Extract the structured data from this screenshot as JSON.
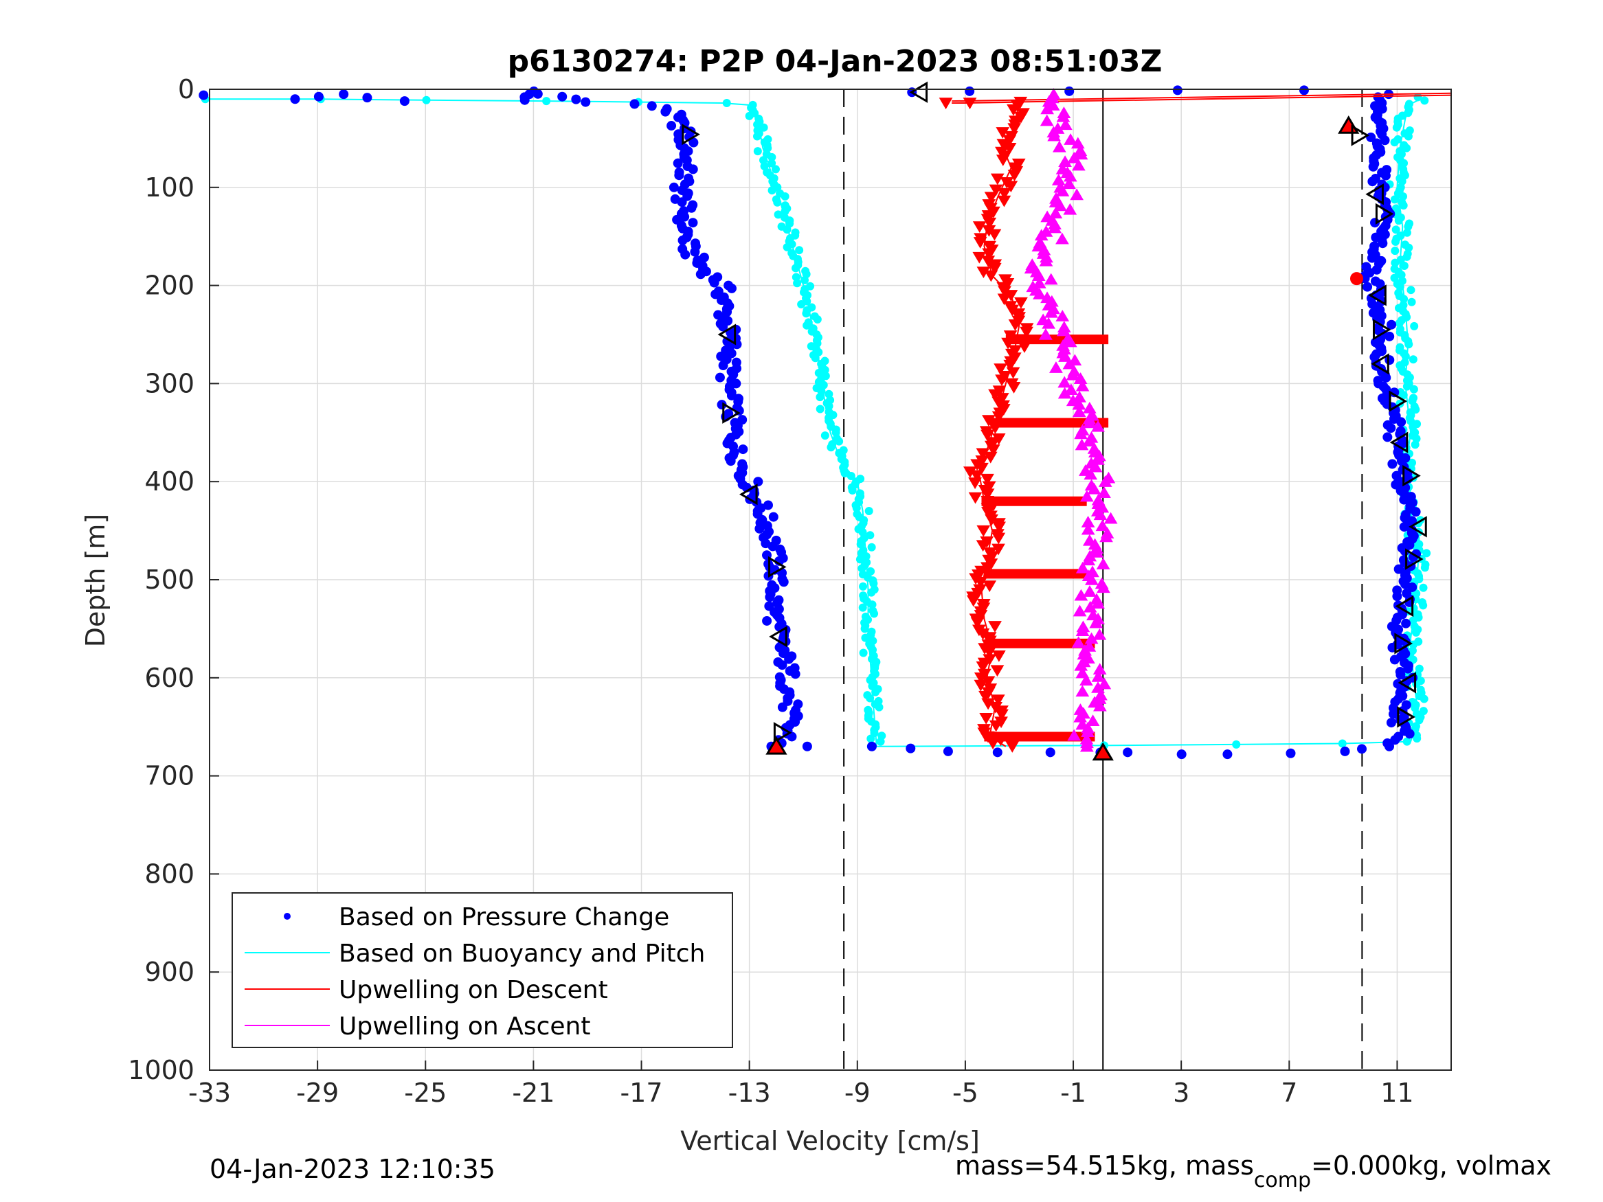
{
  "chart_data": {
    "type": "scatter",
    "title": "p6130274: P2P 04-Jan-2023 08:51:03Z",
    "xlabel": "Vertical Velocity [cm/s]",
    "ylabel": "Depth [m]",
    "xlim": [
      -33,
      13
    ],
    "ylim": [
      0,
      1000
    ],
    "y_reversed": true,
    "grid": true,
    "x_ticks": [
      "-33",
      "-29",
      "-25",
      "-21",
      "-17",
      "-13",
      "-9",
      "-5",
      "-1",
      "3",
      "7",
      "11"
    ],
    "y_ticks": [
      "0",
      "100",
      "200",
      "300",
      "400",
      "500",
      "600",
      "700",
      "800",
      "900",
      "1000"
    ],
    "vertical_lines": [
      {
        "x": -9.5,
        "style": "dashed"
      },
      {
        "x": 0.1,
        "style": "solid"
      },
      {
        "x": 9.7,
        "style": "dashed"
      }
    ],
    "legend_position": "bottom-left",
    "series": [
      {
        "name": "Based on Pressure Change",
        "color": "#0000ff",
        "marker": "dot",
        "descent": [
          [
            -33,
            6
          ],
          [
            -30,
            10
          ],
          [
            -28,
            5
          ],
          [
            -26,
            12
          ],
          [
            -21.5,
            11
          ],
          [
            -21,
            2
          ],
          [
            -19,
            13
          ],
          [
            -17.5,
            15
          ],
          [
            -16.5,
            17
          ],
          [
            -16,
            20
          ],
          [
            -15.5,
            40
          ],
          [
            -15.3,
            60
          ],
          [
            -15.5,
            100
          ],
          [
            -15.4,
            130
          ],
          [
            -15.3,
            160
          ],
          [
            -14.8,
            180
          ],
          [
            -14,
            200
          ],
          [
            -13.9,
            230
          ],
          [
            -13.7,
            260
          ],
          [
            -13.8,
            300
          ],
          [
            -13.6,
            340
          ],
          [
            -13.5,
            370
          ],
          [
            -13,
            400
          ],
          [
            -12.5,
            430
          ],
          [
            -12.2,
            460
          ],
          [
            -12,
            490
          ],
          [
            -12.1,
            530
          ],
          [
            -11.9,
            560
          ],
          [
            -11.6,
            590
          ],
          [
            -11.5,
            630
          ],
          [
            -11.6,
            660
          ],
          [
            -12,
            670
          ]
        ],
        "ascent": [
          [
            -12,
            670
          ],
          [
            -11,
            670
          ],
          [
            -8.5,
            670
          ],
          [
            -7,
            672
          ],
          [
            -5.5,
            675
          ],
          [
            -4,
            676
          ],
          [
            -2,
            676
          ],
          [
            0,
            676
          ],
          [
            1,
            676
          ],
          [
            3,
            678
          ],
          [
            5,
            678
          ],
          [
            7,
            677
          ],
          [
            9,
            675
          ],
          [
            10.5,
            670
          ],
          [
            11.2,
            660
          ],
          [
            11,
            640
          ],
          [
            11.3,
            600
          ],
          [
            11,
            560
          ],
          [
            11.2,
            520
          ],
          [
            11.4,
            480
          ],
          [
            11.5,
            440
          ],
          [
            11.2,
            400
          ],
          [
            11,
            370
          ],
          [
            10.8,
            330
          ],
          [
            10.6,
            300
          ],
          [
            10.4,
            270
          ],
          [
            10.5,
            240
          ],
          [
            10.2,
            210
          ],
          [
            10,
            190
          ],
          [
            10.3,
            160
          ],
          [
            10.5,
            130
          ],
          [
            10.3,
            100
          ],
          [
            10.4,
            70
          ],
          [
            10.2,
            40
          ],
          [
            10.3,
            20
          ],
          [
            10.5,
            5
          ],
          [
            -7,
            3
          ],
          [
            -5,
            2
          ],
          [
            -1,
            2
          ],
          [
            3,
            1
          ],
          [
            7.5,
            1
          ]
        ]
      },
      {
        "name": "Based on Buoyancy and Pitch",
        "color": "#00ffff",
        "marker": "line+dot",
        "descent": [
          [
            -33,
            10
          ],
          [
            -29,
            10
          ],
          [
            -25,
            11
          ],
          [
            -20.5,
            12
          ],
          [
            -17,
            13
          ],
          [
            -14,
            14
          ],
          [
            -13,
            16
          ],
          [
            -12.7,
            30
          ],
          [
            -12.5,
            60
          ],
          [
            -12,
            100
          ],
          [
            -11.6,
            140
          ],
          [
            -11.3,
            170
          ],
          [
            -10.9,
            210
          ],
          [
            -10.6,
            250
          ],
          [
            -10.4,
            280
          ],
          [
            -10.2,
            320
          ],
          [
            -10,
            350
          ],
          [
            -9.6,
            380
          ],
          [
            -9,
            400
          ],
          [
            -8.8,
            430
          ],
          [
            -8.7,
            470
          ],
          [
            -8.6,
            510
          ],
          [
            -8.6,
            550
          ],
          [
            -8.5,
            590
          ],
          [
            -8.4,
            630
          ],
          [
            -8.3,
            665
          ]
        ],
        "ascent": [
          [
            -8.3,
            670
          ],
          [
            0,
            669
          ],
          [
            5,
            668
          ],
          [
            9,
            667
          ],
          [
            11.5,
            665
          ],
          [
            11.8,
            640
          ],
          [
            11.6,
            600
          ],
          [
            11.5,
            560
          ],
          [
            11.7,
            520
          ],
          [
            11.8,
            470
          ],
          [
            11.5,
            430
          ],
          [
            11.3,
            390
          ],
          [
            11.5,
            350
          ],
          [
            11.3,
            300
          ],
          [
            11.4,
            260
          ],
          [
            11.3,
            220
          ],
          [
            11.1,
            180
          ],
          [
            11.2,
            140
          ],
          [
            11,
            100
          ],
          [
            11.1,
            60
          ],
          [
            11.3,
            30
          ],
          [
            11.5,
            15
          ],
          [
            12,
            8
          ]
        ]
      },
      {
        "name": "Upwelling on Descent",
        "color": "#ff0000",
        "marker": "triangle-down",
        "points": [
          [
            -5.5,
            14
          ],
          [
            -5,
            14
          ],
          [
            -3,
            13
          ],
          [
            -3.2,
            40
          ],
          [
            -3.6,
            60
          ],
          [
            -3.3,
            80
          ],
          [
            -3.8,
            110
          ],
          [
            -4.2,
            140
          ],
          [
            -4.3,
            160
          ],
          [
            -4,
            190
          ],
          [
            -3.3,
            210
          ],
          [
            -3,
            240
          ],
          [
            -3.2,
            270
          ],
          [
            -3.5,
            300
          ],
          [
            -3.8,
            330
          ],
          [
            -4.1,
            360
          ],
          [
            -4.5,
            390
          ],
          [
            -4.3,
            420
          ],
          [
            -4,
            450
          ],
          [
            -4.2,
            480
          ],
          [
            -4.4,
            510
          ],
          [
            -4.3,
            540
          ],
          [
            -4,
            570
          ],
          [
            -4.2,
            600
          ],
          [
            -3.9,
            630
          ],
          [
            -4.1,
            660
          ],
          [
            -3.5,
            670
          ]
        ],
        "bands": [
          [
            -3.5,
            0.3,
            255
          ],
          [
            -4,
            0.3,
            340
          ],
          [
            -4.4,
            -0.5,
            420
          ],
          [
            -4.3,
            -0.5,
            494
          ],
          [
            -4.1,
            -0.2,
            565
          ],
          [
            -4.3,
            -0.2,
            660
          ]
        ]
      },
      {
        "name": "Upwelling on Ascent",
        "color": "#ff00ff",
        "marker": "triangle-up",
        "points": [
          [
            -0.5,
            670
          ],
          [
            -0.6,
            640
          ],
          [
            -0.2,
            610
          ],
          [
            -0.5,
            580
          ],
          [
            -0.4,
            540
          ],
          [
            -0.3,
            500
          ],
          [
            -0.2,
            460
          ],
          [
            0,
            430
          ],
          [
            -0.1,
            400
          ],
          [
            -0.3,
            370
          ],
          [
            -0.5,
            340
          ],
          [
            -0.9,
            310
          ],
          [
            -1.3,
            280
          ],
          [
            -1.6,
            250
          ],
          [
            -2,
            220
          ],
          [
            -2.2,
            190
          ],
          [
            -1.9,
            160
          ],
          [
            -1.6,
            130
          ],
          [
            -1.2,
            100
          ],
          [
            -1,
            70
          ],
          [
            -1.5,
            40
          ],
          [
            -1.8,
            20
          ],
          [
            -1.5,
            5
          ]
        ]
      }
    ],
    "special_markers": [
      {
        "x": -15.2,
        "y": 46,
        "shape": "open-triangle-right"
      },
      {
        "x": -13.8,
        "y": 250,
        "shape": "open-triangle-left"
      },
      {
        "x": -13.7,
        "y": 330,
        "shape": "open-triangle-right"
      },
      {
        "x": -13,
        "y": 413,
        "shape": "open-triangle-left"
      },
      {
        "x": -12,
        "y": 487,
        "shape": "open-triangle-right"
      },
      {
        "x": -11.9,
        "y": 558,
        "shape": "open-triangle-left"
      },
      {
        "x": -11.8,
        "y": 656,
        "shape": "open-triangle-right"
      },
      {
        "x": -12,
        "y": 670,
        "shape": "red-triangle"
      },
      {
        "x": -6.7,
        "y": 3,
        "shape": "open-triangle-left"
      },
      {
        "x": 0.1,
        "y": 676,
        "shape": "red-triangle-up"
      },
      {
        "x": 9.2,
        "y": 37,
        "shape": "red-triangle-up"
      },
      {
        "x": 9.5,
        "y": 193,
        "shape": "red-dot"
      },
      {
        "x": 9.6,
        "y": 47,
        "shape": "open-triangle-right"
      },
      {
        "x": 10.2,
        "y": 107,
        "shape": "open-triangle-left"
      },
      {
        "x": 10.5,
        "y": 127,
        "shape": "open-triangle-right"
      },
      {
        "x": 10.3,
        "y": 210,
        "shape": "open-triangle-left"
      },
      {
        "x": 10.4,
        "y": 245,
        "shape": "open-triangle-right"
      },
      {
        "x": 10.4,
        "y": 280,
        "shape": "open-triangle-left"
      },
      {
        "x": 11,
        "y": 318,
        "shape": "open-triangle-right"
      },
      {
        "x": 11.1,
        "y": 360,
        "shape": "open-triangle-left"
      },
      {
        "x": 11.5,
        "y": 394,
        "shape": "open-triangle-right"
      },
      {
        "x": 11.8,
        "y": 446,
        "shape": "open-triangle-left"
      },
      {
        "x": 11.6,
        "y": 479,
        "shape": "open-triangle-right"
      },
      {
        "x": 11.3,
        "y": 527,
        "shape": "open-triangle-left"
      },
      {
        "x": 11.2,
        "y": 565,
        "shape": "open-triangle-right"
      },
      {
        "x": 11.4,
        "y": 605,
        "shape": "open-triangle-left"
      },
      {
        "x": 11.3,
        "y": 640,
        "shape": "open-triangle-right"
      }
    ]
  },
  "footer": {
    "timestamp": "04-Jan-2023 12:10:35",
    "mass_text": "mass=54.515kg, mass",
    "mass_sub": "comp",
    "mass_tail": "=0.000kg, volmax"
  }
}
